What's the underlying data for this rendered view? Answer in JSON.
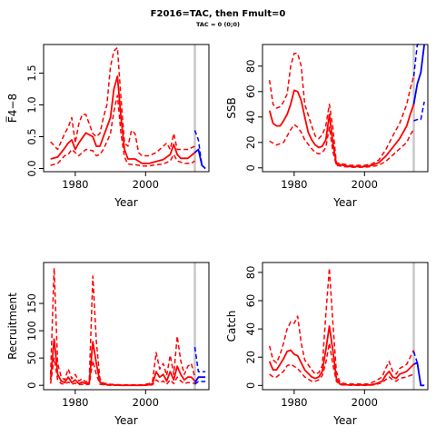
{
  "page": {
    "title": "F2016=TAC, then Fmult=0",
    "subtitle": "TAC = 0 (0;0)"
  },
  "chart_data": [
    {
      "type": "line",
      "ylabel": "F̅4−8",
      "xlabel": "Year",
      "xlim": [
        1971,
        2018
      ],
      "ylim": [
        -0.05,
        1.95
      ],
      "xticks": [
        1980,
        2000
      ],
      "yticks": [
        0,
        0.5,
        1,
        1.5
      ],
      "ytick_labels": [
        "0.0",
        "0.5",
        "1.0",
        "1.5"
      ],
      "reference_year": 2014,
      "series": [
        {
          "role": "median",
          "color": "#ff0000",
          "dash": false,
          "x": [
            1973,
            1975,
            1977,
            1978,
            1979,
            1980,
            1981,
            1983,
            1985,
            1986,
            1987,
            1988,
            1989,
            1990,
            1991,
            1992,
            1993,
            1994,
            1995,
            1997,
            1999,
            2001,
            2003,
            2005,
            2007,
            2008,
            2009,
            2010,
            2012,
            2014
          ],
          "y": [
            0.15,
            0.18,
            0.32,
            0.4,
            0.45,
            0.3,
            0.4,
            0.56,
            0.5,
            0.35,
            0.35,
            0.5,
            0.65,
            0.8,
            1.25,
            1.45,
            0.8,
            0.3,
            0.15,
            0.15,
            0.08,
            0.08,
            0.11,
            0.14,
            0.22,
            0.38,
            0.22,
            0.16,
            0.16,
            0.25
          ]
        },
        {
          "role": "lower",
          "color": "#ff0000",
          "dash": true,
          "x": [
            1973,
            1975,
            1977,
            1978,
            1979,
            1981,
            1983,
            1985,
            1986,
            1987,
            1988,
            1989,
            1990,
            1991,
            1992,
            1993,
            1994,
            1995,
            1997,
            1999,
            2001,
            2003,
            2005,
            2007,
            2008,
            2009,
            2011,
            2013,
            2014
          ],
          "y": [
            0.05,
            0.08,
            0.2,
            0.22,
            0.3,
            0.2,
            0.3,
            0.28,
            0.2,
            0.22,
            0.3,
            0.42,
            0.55,
            0.9,
            1.15,
            0.55,
            0.18,
            0.07,
            0.06,
            0.04,
            0.04,
            0.06,
            0.07,
            0.12,
            0.22,
            0.12,
            0.08,
            0.08,
            0.12
          ]
        },
        {
          "role": "upper",
          "color": "#ff0000",
          "dash": true,
          "x": [
            1973,
            1975,
            1977,
            1978,
            1979,
            1980,
            1981,
            1982,
            1983,
            1985,
            1986,
            1987,
            1988,
            1989,
            1990,
            1991,
            1992,
            1993,
            1994,
            1995,
            1996,
            1997,
            1998,
            1999,
            2001,
            2003,
            2005,
            2006,
            2007,
            2008,
            2009,
            2010,
            2011,
            2012,
            2014
          ],
          "y": [
            0.42,
            0.3,
            0.55,
            0.65,
            0.8,
            0.4,
            0.7,
            0.85,
            0.85,
            0.55,
            0.5,
            0.55,
            0.8,
            1.0,
            1.6,
            1.85,
            1.9,
            1.1,
            0.4,
            0.35,
            0.6,
            0.55,
            0.25,
            0.2,
            0.2,
            0.25,
            0.35,
            0.4,
            0.3,
            0.55,
            0.3,
            0.3,
            0.3,
            0.3,
            0.35
          ]
        },
        {
          "role": "projection",
          "color": "#0000ff",
          "dash": true,
          "x": [
            2014,
            2015,
            2016,
            2017
          ],
          "y": [
            0.6,
            0.45,
            0.05,
            0.0
          ]
        },
        {
          "role": "projection",
          "color": "#0000ff",
          "dash": false,
          "x": [
            2014,
            2015,
            2016,
            2017
          ],
          "y": [
            0.25,
            0.3,
            0.05,
            0.0
          ]
        }
      ]
    },
    {
      "type": "line",
      "ylabel": "SSB",
      "xlabel": "Year",
      "xlim": [
        1971,
        2018
      ],
      "ylim": [
        -3,
        97
      ],
      "xticks": [
        1980,
        2000
      ],
      "yticks": [
        0,
        20,
        40,
        60,
        80
      ],
      "ytick_labels": [
        "0",
        "20",
        "40",
        "60",
        "80"
      ],
      "reference_year": 2014,
      "series": [
        {
          "role": "median",
          "color": "#ff0000",
          "dash": false,
          "x": [
            1973,
            1974,
            1975,
            1976,
            1977,
            1978,
            1979,
            1980,
            1981,
            1982,
            1983,
            1984,
            1985,
            1986,
            1987,
            1988,
            1989,
            1990,
            1991,
            1992,
            1994,
            1996,
            1998,
            2000,
            2002,
            2004,
            2006,
            2008,
            2010,
            2012,
            2013,
            2014
          ],
          "y": [
            45,
            35,
            33,
            33,
            37,
            42,
            50,
            61,
            60,
            53,
            40,
            28,
            22,
            18,
            16,
            17,
            22,
            42,
            20,
            3,
            2,
            1,
            1,
            1,
            2,
            4,
            9,
            16,
            23,
            33,
            42,
            50
          ]
        },
        {
          "role": "lower",
          "color": "#ff0000",
          "dash": true,
          "x": [
            1973,
            1975,
            1977,
            1978,
            1979,
            1980,
            1981,
            1982,
            1983,
            1985,
            1986,
            1987,
            1988,
            1989,
            1990,
            1991,
            1992,
            1994,
            1996,
            1998,
            2000,
            2002,
            2004,
            2006,
            2008,
            2010,
            2012,
            2013,
            2014
          ],
          "y": [
            21,
            18,
            20,
            25,
            30,
            34,
            32,
            28,
            22,
            15,
            12,
            11,
            12,
            16,
            32,
            13,
            2,
            1,
            0.5,
            0.5,
            0.5,
            1,
            2,
            5,
            10,
            15,
            20,
            26,
            30
          ]
        },
        {
          "role": "upper",
          "color": "#ff0000",
          "dash": true,
          "x": [
            1973,
            1974,
            1975,
            1976,
            1977,
            1978,
            1979,
            1980,
            1981,
            1982,
            1983,
            1985,
            1986,
            1987,
            1988,
            1989,
            1990,
            1991,
            1992,
            1994,
            1996,
            1998,
            2000,
            2002,
            2004,
            2006,
            2008,
            2010,
            2012,
            2013,
            2014
          ],
          "y": [
            69,
            50,
            47,
            48,
            52,
            58,
            80,
            90,
            90,
            80,
            50,
            33,
            25,
            23,
            26,
            33,
            50,
            32,
            4,
            3,
            2,
            2,
            2,
            3,
            6,
            14,
            25,
            35,
            50,
            62,
            72
          ]
        },
        {
          "role": "projection",
          "color": "#0000ff",
          "dash": false,
          "x": [
            2014,
            2015,
            2016,
            2017
          ],
          "y": [
            50,
            66,
            75,
            97
          ]
        },
        {
          "role": "projection",
          "color": "#0000ff",
          "dash": true,
          "x": [
            2014,
            2015,
            2016,
            2017
          ],
          "y": [
            37,
            38,
            38,
            52
          ]
        },
        {
          "role": "projection",
          "color": "#0000ff",
          "dash": true,
          "x": [
            2014,
            2015,
            2016
          ],
          "y": [
            72,
            97,
            97
          ]
        }
      ]
    },
    {
      "type": "line",
      "ylabel": "Recruitment",
      "xlabel": "Year",
      "xlim": [
        1971,
        2018
      ],
      "ylim": [
        -8,
        225
      ],
      "xticks": [
        1980,
        2000
      ],
      "yticks": [
        0,
        50,
        100,
        150
      ],
      "ytick_labels": [
        "0",
        "50",
        "100",
        "150"
      ],
      "reference_year": 2014,
      "series": [
        {
          "role": "median",
          "color": "#ff0000",
          "dash": false,
          "x": [
            1973,
            1974,
            1975,
            1976,
            1977,
            1978,
            1979,
            1980,
            1981,
            1982,
            1983,
            1984,
            1985,
            1986,
            1987,
            1988,
            1990,
            1993,
            1996,
            1999,
            2001,
            2002,
            2003,
            2004,
            2005,
            2006,
            2007,
            2008,
            2009,
            2010,
            2011,
            2012,
            2013,
            2014
          ],
          "y": [
            10,
            85,
            20,
            8,
            5,
            15,
            5,
            10,
            3,
            6,
            3,
            5,
            80,
            40,
            6,
            2,
            1,
            0,
            0,
            0,
            1,
            3,
            25,
            15,
            20,
            8,
            25,
            10,
            35,
            20,
            10,
            15,
            15,
            8
          ]
        },
        {
          "role": "lower",
          "color": "#ff0000",
          "dash": true,
          "x": [
            1973,
            1974,
            1975,
            1976,
            1977,
            1978,
            1979,
            1980,
            1981,
            1982,
            1983,
            1984,
            1985,
            1986,
            1987,
            1988,
            1990,
            1993,
            1996,
            1999,
            2001,
            2002,
            2003,
            2004,
            2005,
            2006,
            2007,
            2008,
            2009,
            2010,
            2011,
            2012,
            2013,
            2014
          ],
          "y": [
            3,
            50,
            10,
            3,
            2,
            6,
            2,
            4,
            1,
            2,
            1,
            2,
            45,
            20,
            2,
            1,
            0,
            0,
            0,
            0,
            0,
            1,
            10,
            5,
            8,
            2,
            10,
            3,
            15,
            8,
            3,
            5,
            5,
            3
          ]
        },
        {
          "role": "upper",
          "color": "#ff0000",
          "dash": true,
          "x": [
            1973,
            1974,
            1975,
            1976,
            1977,
            1978,
            1979,
            1980,
            1981,
            1982,
            1983,
            1984,
            1985,
            1986,
            1987,
            1988,
            1990,
            1993,
            1996,
            1999,
            2001,
            2002,
            2003,
            2004,
            2005,
            2006,
            2007,
            2008,
            2009,
            2010,
            2011,
            2012,
            2013,
            2014
          ],
          "y": [
            20,
            215,
            40,
            15,
            10,
            30,
            12,
            20,
            8,
            12,
            6,
            10,
            200,
            80,
            12,
            4,
            2,
            1,
            1,
            1,
            3,
            8,
            60,
            30,
            40,
            18,
            55,
            20,
            90,
            45,
            20,
            35,
            40,
            15
          ]
        },
        {
          "role": "projection",
          "color": "#0000ff",
          "dash": true,
          "x": [
            2014,
            2015,
            2016,
            2017
          ],
          "y": [
            70,
            25,
            25,
            25
          ]
        },
        {
          "role": "projection",
          "color": "#0000ff",
          "dash": false,
          "x": [
            2014,
            2015,
            2016,
            2017
          ],
          "y": [
            5,
            15,
            15,
            15
          ]
        },
        {
          "role": "projection",
          "color": "#0000ff",
          "dash": true,
          "x": [
            2014,
            2015,
            2016,
            2017
          ],
          "y": [
            2,
            7,
            7,
            7
          ]
        }
      ]
    },
    {
      "type": "line",
      "ylabel": "Catch",
      "xlabel": "Year",
      "xlim": [
        1971,
        2018
      ],
      "ylim": [
        -3,
        87
      ],
      "xticks": [
        1980,
        2000
      ],
      "yticks": [
        0,
        20,
        40,
        60,
        80
      ],
      "ytick_labels": [
        "0",
        "20",
        "40",
        "60",
        "80"
      ],
      "reference_year": 2014,
      "series": [
        {
          "role": "median",
          "color": "#ff0000",
          "dash": false,
          "x": [
            1973,
            1974,
            1975,
            1976,
            1977,
            1978,
            1979,
            1980,
            1981,
            1982,
            1983,
            1985,
            1986,
            1987,
            1988,
            1989,
            1990,
            1991,
            1992,
            1993,
            1995,
            1998,
            2001,
            2003,
            2005,
            2006,
            2007,
            2008,
            2009,
            2010,
            2012,
            2014
          ],
          "y": [
            17,
            11,
            11,
            15,
            19,
            24,
            25,
            22,
            21,
            16,
            11,
            6,
            5,
            6,
            10,
            25,
            42,
            25,
            5,
            1,
            0.5,
            0.3,
            0.3,
            1,
            3,
            7,
            10,
            6,
            5,
            8,
            10,
            15
          ]
        },
        {
          "role": "lower",
          "color": "#ff0000",
          "dash": true,
          "x": [
            1973,
            1974,
            1975,
            1976,
            1977,
            1978,
            1979,
            1981,
            1982,
            1983,
            1985,
            1986,
            1987,
            1988,
            1989,
            1990,
            1991,
            1992,
            1993,
            1995,
            1998,
            2001,
            2003,
            2005,
            2006,
            2007,
            2008,
            2009,
            2010,
            2012,
            2014
          ],
          "y": [
            8,
            6,
            6,
            8,
            10,
            14,
            15,
            12,
            9,
            6,
            3,
            3,
            4,
            7,
            16,
            30,
            15,
            3,
            0.5,
            0.2,
            0.1,
            0.1,
            0.5,
            2,
            4,
            6,
            4,
            3,
            5,
            6,
            8
          ]
        },
        {
          "role": "upper",
          "color": "#ff0000",
          "dash": true,
          "x": [
            1973,
            1974,
            1975,
            1976,
            1977,
            1978,
            1979,
            1980,
            1981,
            1982,
            1983,
            1985,
            1986,
            1987,
            1988,
            1989,
            1990,
            1991,
            1992,
            1993,
            1995,
            1998,
            2001,
            2003,
            2005,
            2006,
            2007,
            2008,
            2009,
            2010,
            2012,
            2014
          ],
          "y": [
            28,
            18,
            16,
            22,
            30,
            40,
            45,
            44,
            49,
            30,
            18,
            11,
            8,
            9,
            14,
            50,
            83,
            45,
            10,
            2,
            1,
            1,
            1,
            3,
            6,
            12,
            17,
            10,
            8,
            12,
            15,
            25
          ]
        },
        {
          "role": "projection",
          "color": "#0000ff",
          "dash": false,
          "x": [
            2014,
            2015,
            2016,
            2017
          ],
          "y": [
            15,
            16,
            0,
            0
          ]
        },
        {
          "role": "projection",
          "color": "#0000ff",
          "dash": true,
          "x": [
            2014,
            2015,
            2016,
            2017
          ],
          "y": [
            24,
            16,
            0,
            0
          ]
        }
      ]
    }
  ]
}
